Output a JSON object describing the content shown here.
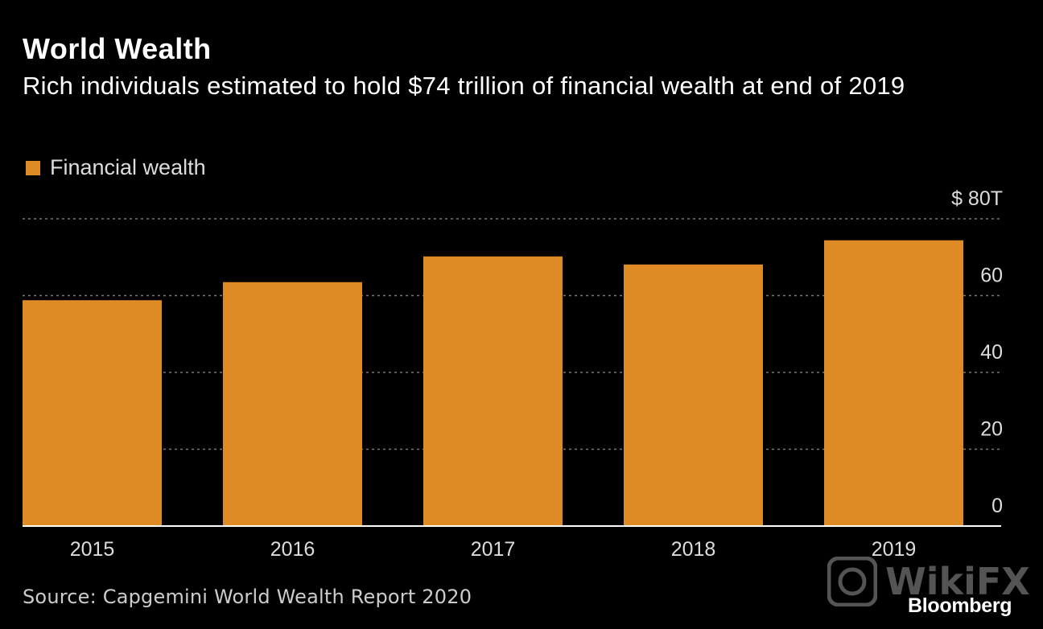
{
  "header": {
    "title": "World Wealth",
    "subtitle": "Rich individuals estimated to hold $74 trillion of financial wealth at end of 2019"
  },
  "legend": {
    "label": "Financial wealth"
  },
  "footer": {
    "source": "Source: Capgemini World Wealth Report 2020",
    "brand": "Bloomberg",
    "watermark_text": "WikiFX"
  },
  "colors": {
    "background": "#000000",
    "bar": "#de8b26",
    "grid": "#777777",
    "axis": "#ffffff",
    "tick_text": "#dddddd"
  },
  "chart_data": {
    "type": "bar",
    "title": "World Wealth",
    "subtitle": "Rich individuals estimated to hold $74 trillion of financial wealth at end of 2019",
    "categories": [
      "2015",
      "2016",
      "2017",
      "2018",
      "2019"
    ],
    "series": [
      {
        "name": "Financial wealth",
        "values": [
          58.8,
          63.5,
          70.2,
          68.1,
          74.4
        ]
      }
    ],
    "ylim": [
      0,
      80
    ],
    "yticks": [
      0,
      20,
      40,
      60,
      80
    ],
    "ytick_labels": [
      "0",
      "20",
      "40",
      "60",
      "$ 80T"
    ],
    "grid": true,
    "grid_style": "dotted",
    "y_axis_position": "right",
    "legend_position": "top-left"
  }
}
